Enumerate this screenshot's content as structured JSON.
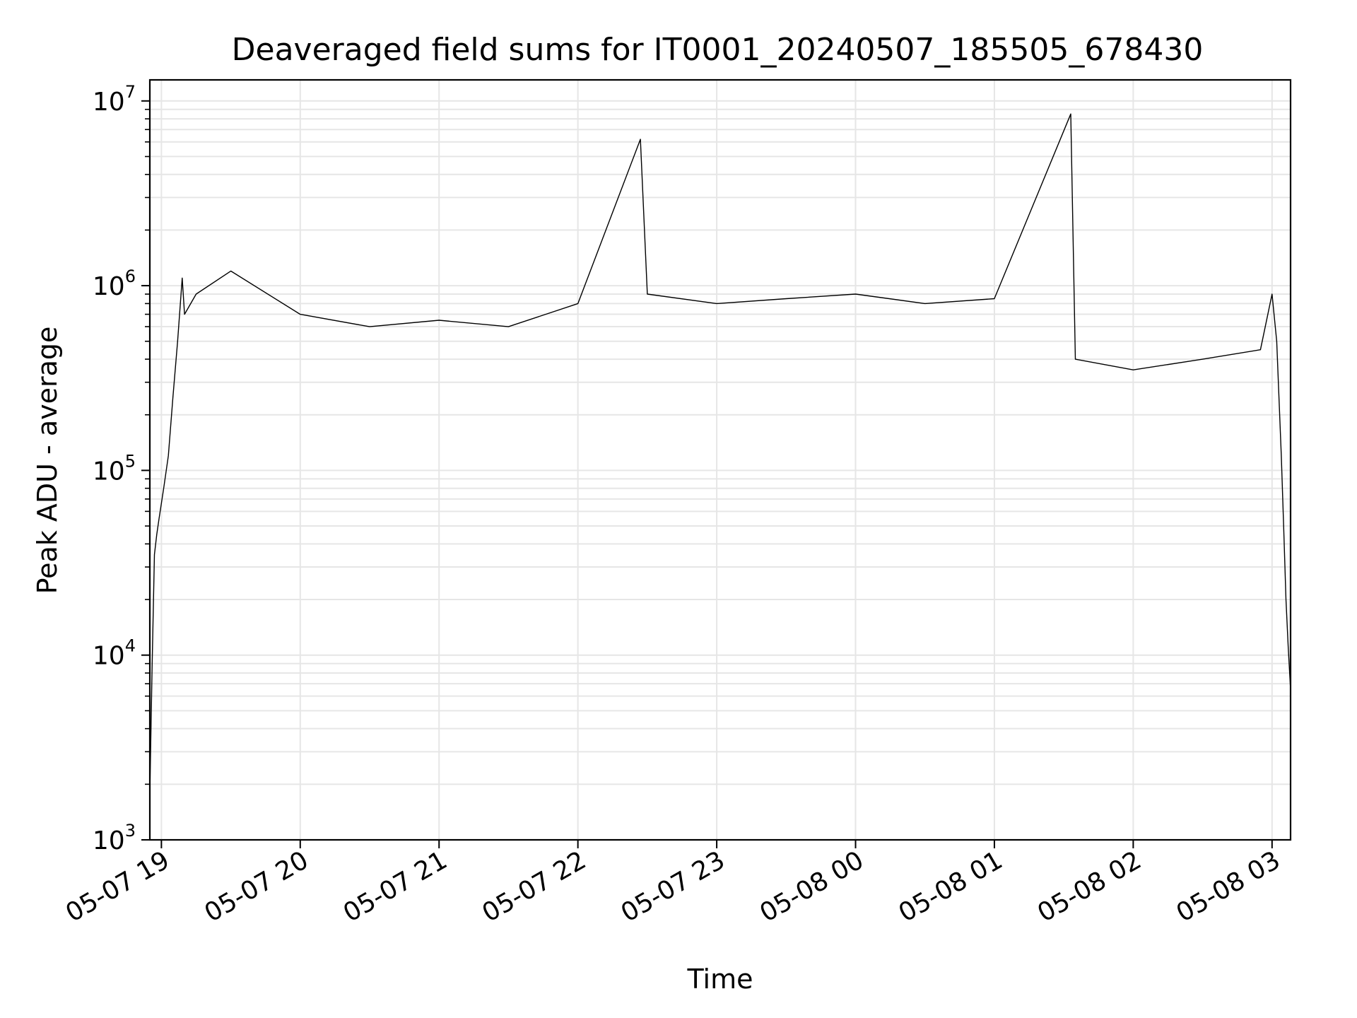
{
  "chart_data": {
    "type": "line",
    "title": "Deaveraged field sums for IT0001_20240507_185505_678430",
    "xlabel": "Time",
    "ylabel": "Peak ADU - average",
    "yscale": "log",
    "ylim": [
      1000,
      13000000
    ],
    "xlim": [
      "2024-05-07 18:55",
      "2024-05-08 03:08"
    ],
    "grid": true,
    "line_color": "#000000",
    "x_ticks": [
      "05-07 19",
      "05-07 20",
      "05-07 21",
      "05-07 22",
      "05-07 23",
      "05-08 00",
      "05-08 01",
      "05-08 02",
      "05-08 03"
    ],
    "y_ticks": [
      {
        "value": 1000,
        "base": "10",
        "exp": "3"
      },
      {
        "value": 10000,
        "base": "10",
        "exp": "4"
      },
      {
        "value": 100000,
        "base": "10",
        "exp": "5"
      },
      {
        "value": 1000000,
        "base": "10",
        "exp": "6"
      },
      {
        "value": 10000000,
        "base": "10",
        "exp": "7"
      }
    ],
    "series": [
      {
        "points": [
          [
            "2024-05-07 18:55",
            1800
          ],
          [
            "2024-05-07 18:56",
            9000
          ],
          [
            "2024-05-07 18:57",
            35000
          ],
          [
            "2024-05-07 18:58",
            45000
          ],
          [
            "2024-05-07 18:59",
            55000
          ],
          [
            "2024-05-07 19:01",
            80000
          ],
          [
            "2024-05-07 19:03",
            120000
          ],
          [
            "2024-05-07 19:05",
            250000
          ],
          [
            "2024-05-07 19:07",
            500000
          ],
          [
            "2024-05-07 19:09",
            1100000
          ],
          [
            "2024-05-07 19:10",
            700000
          ],
          [
            "2024-05-07 19:15",
            900000
          ],
          [
            "2024-05-07 19:30",
            1200000
          ],
          [
            "2024-05-07 20:00",
            700000
          ],
          [
            "2024-05-07 20:30",
            600000
          ],
          [
            "2024-05-07 21:00",
            650000
          ],
          [
            "2024-05-07 21:30",
            600000
          ],
          [
            "2024-05-07 22:00",
            800000
          ],
          [
            "2024-05-07 22:27",
            6200000
          ],
          [
            "2024-05-07 22:30",
            900000
          ],
          [
            "2024-05-07 23:00",
            800000
          ],
          [
            "2024-05-07 23:30",
            850000
          ],
          [
            "2024-05-08 00:00",
            900000
          ],
          [
            "2024-05-08 00:30",
            800000
          ],
          [
            "2024-05-08 01:00",
            850000
          ],
          [
            "2024-05-08 01:33",
            8500000
          ],
          [
            "2024-05-08 01:35",
            400000
          ],
          [
            "2024-05-08 02:00",
            350000
          ],
          [
            "2024-05-08 02:30",
            400000
          ],
          [
            "2024-05-08 02:55",
            450000
          ],
          [
            "2024-05-08 03:00",
            900000
          ],
          [
            "2024-05-08 03:02",
            500000
          ],
          [
            "2024-05-08 03:04",
            120000
          ],
          [
            "2024-05-08 03:05",
            50000
          ],
          [
            "2024-05-08 03:06",
            20000
          ],
          [
            "2024-05-08 03:07",
            11000
          ],
          [
            "2024-05-08 03:08",
            6500
          ]
        ]
      }
    ]
  }
}
